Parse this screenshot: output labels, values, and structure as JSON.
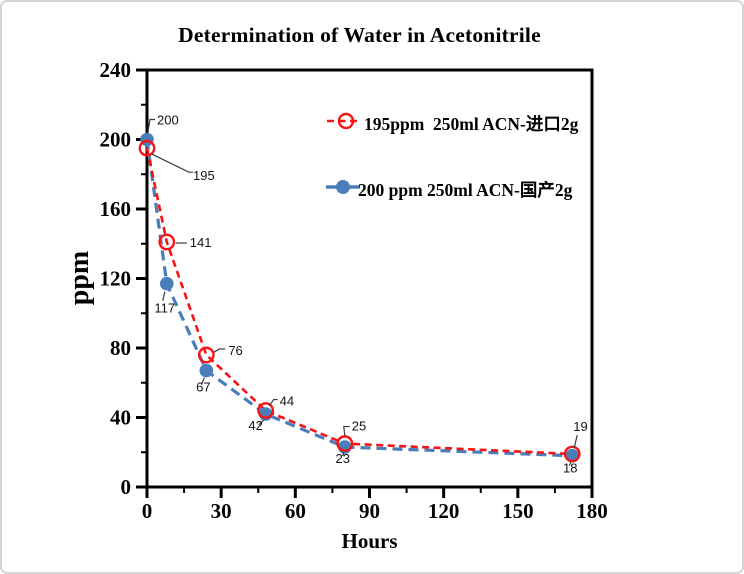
{
  "window": {
    "background": "#ffffff",
    "border_color": "#d4d4d8"
  },
  "chart_data": {
    "type": "line",
    "title": "Determination of Water in Acetonitrile",
    "xlabel": "Hours",
    "ylabel": "ppm",
    "xlim": [
      0,
      180
    ],
    "ylim": [
      0,
      240
    ],
    "x_major_ticks": [
      0,
      30,
      60,
      90,
      120,
      150,
      180
    ],
    "x_minor_step": 15,
    "y_major_ticks": [
      0,
      40,
      80,
      120,
      160,
      200,
      240
    ],
    "y_minor_step": 20,
    "grid": false,
    "frame": "full-box",
    "axis_color": "#000000",
    "legend_position": "inside-top-center",
    "data_labels": true,
    "series": [
      {
        "name": "195ppm  250ml ACN-进口2g",
        "color": "#f81414",
        "line_style": "dashed",
        "marker": "open-circle",
        "x": [
          0,
          8,
          24,
          48,
          80,
          172
        ],
        "values": [
          195,
          141,
          76,
          44,
          25,
          19
        ]
      },
      {
        "name": "200 ppm 250ml ACN-国产2g",
        "color": "#4a7ebb",
        "line_style": "dashed",
        "marker": "filled-circle",
        "x": [
          0,
          8,
          24,
          48,
          80,
          172
        ],
        "values": [
          200,
          117,
          67,
          42,
          23,
          18
        ]
      }
    ]
  }
}
